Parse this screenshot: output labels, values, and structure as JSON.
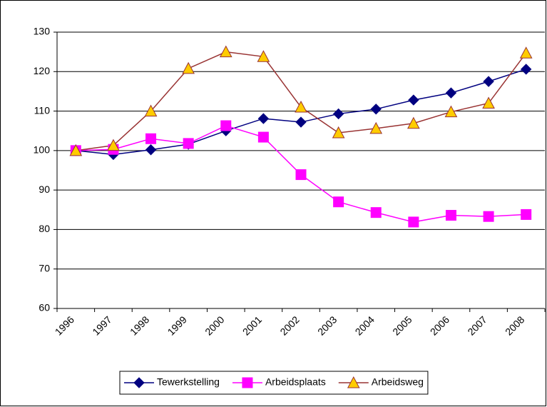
{
  "chart_data": {
    "type": "line",
    "categories": [
      "1996",
      "1997",
      "1998",
      "1999",
      "2000",
      "2001",
      "2002",
      "2003",
      "2004",
      "2005",
      "2006",
      "2007",
      "2008"
    ],
    "series": [
      {
        "name": "Tewerkstelling",
        "color": "#000080",
        "marker": "diamond",
        "marker_fill": "#000080",
        "values": [
          100,
          99,
          100.2,
          101.6,
          105,
          108.1,
          107.2,
          109.3,
          110.5,
          112.8,
          114.6,
          117.5,
          120.6
        ]
      },
      {
        "name": "Arbeidsplaats",
        "color": "#ff00ff",
        "marker": "square",
        "marker_fill": "#ff00ff",
        "values": [
          100,
          100.3,
          103,
          101.8,
          106.3,
          103.4,
          93.9,
          87,
          84.3,
          81.9,
          83.6,
          83.3,
          83.8
        ]
      },
      {
        "name": "Arbeidsweg",
        "color": "#993333",
        "marker": "triangle",
        "marker_fill": "#ffcc00",
        "values": [
          100,
          101.3,
          110,
          120.8,
          125,
          123.8,
          111,
          104.5,
          105.6,
          106.9,
          109.8,
          112,
          124.7
        ]
      }
    ],
    "ylim": [
      60,
      130
    ],
    "yticks": [
      60,
      70,
      80,
      90,
      100,
      110,
      120,
      130
    ],
    "grid": true,
    "legend": "bottom"
  }
}
